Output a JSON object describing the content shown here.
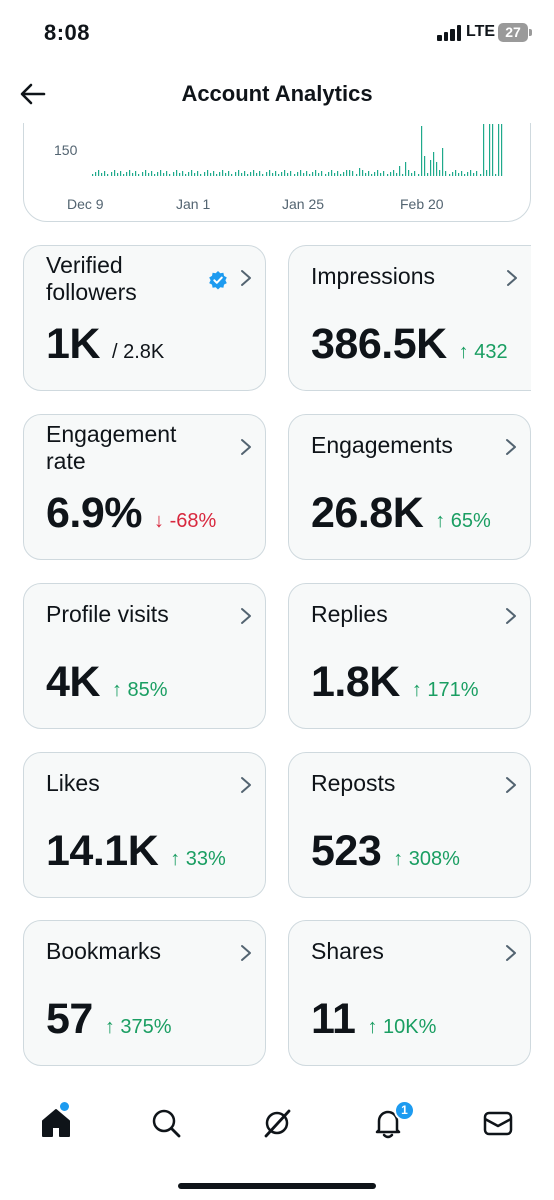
{
  "status_bar": {
    "time": "8:08",
    "network": "LTE",
    "battery": "27"
  },
  "header": {
    "title": "Account Analytics"
  },
  "chart": {
    "y_tick": "150",
    "x_ticks": [
      "Dec 9",
      "Jan 1",
      "Jan 25",
      "Feb 20"
    ],
    "bar_color": "#1fa98b"
  },
  "metrics": [
    {
      "label": "Verified followers",
      "value": "1K",
      "sub": "/ 2.8K",
      "change": "",
      "direction": "",
      "verified_icon": true
    },
    {
      "label": "Impressions",
      "value": "386.5K",
      "sub": "",
      "change": "↑ 432",
      "direction": "up"
    },
    {
      "label": "Engagement rate",
      "value": "6.9%",
      "sub": "",
      "change": "↓ -68%",
      "direction": "down"
    },
    {
      "label": "Engagements",
      "value": "26.8K",
      "sub": "",
      "change": "↑ 65%",
      "direction": "up"
    },
    {
      "label": "Profile visits",
      "value": "4K",
      "sub": "",
      "change": "↑ 85%",
      "direction": "up"
    },
    {
      "label": "Replies",
      "value": "1.8K",
      "sub": "",
      "change": "↑ 171%",
      "direction": "up"
    },
    {
      "label": "Likes",
      "value": "14.1K",
      "sub": "",
      "change": "↑ 33%",
      "direction": "up"
    },
    {
      "label": "Reposts",
      "value": "523",
      "sub": "",
      "change": "↑ 308%",
      "direction": "up"
    },
    {
      "label": "Bookmarks",
      "value": "57",
      "sub": "",
      "change": "↑ 375%",
      "direction": "up"
    },
    {
      "label": "Shares",
      "value": "11",
      "sub": "",
      "change": "↑ 10K%",
      "direction": "up"
    }
  ],
  "bottom_nav": {
    "items": [
      "home-icon",
      "search-icon",
      "grok-icon",
      "notifications-icon",
      "messages-icon"
    ],
    "notification_badge": "1"
  },
  "colors": {
    "accent": "#1d9bf0",
    "up": "#1a9e62",
    "down": "#d8283e"
  }
}
